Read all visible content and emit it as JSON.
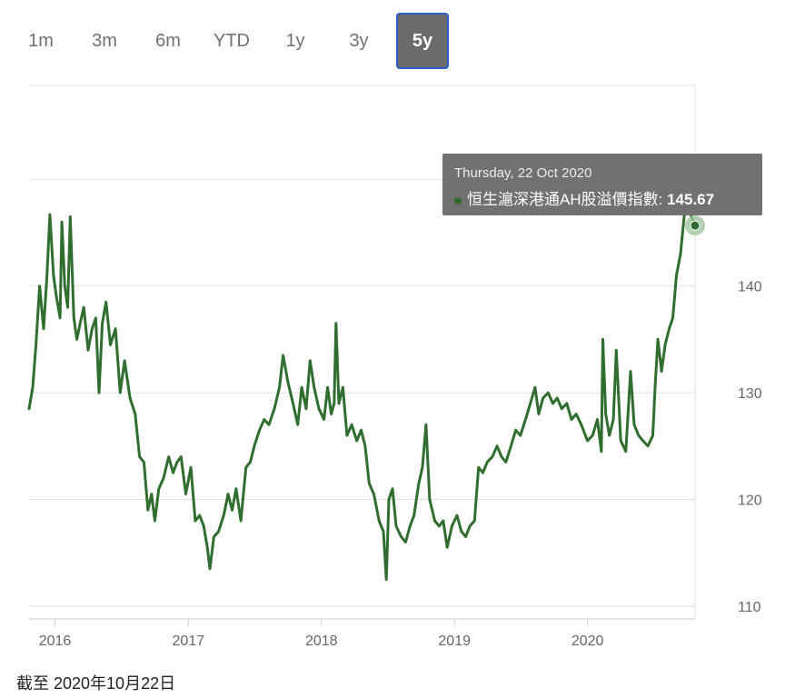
{
  "range_selector": {
    "buttons": [
      {
        "label": "1m",
        "active": false
      },
      {
        "label": "3m",
        "active": false
      },
      {
        "label": "6m",
        "active": false
      },
      {
        "label": "YTD",
        "active": false
      },
      {
        "label": "1y",
        "active": false
      },
      {
        "label": "3y",
        "active": false
      },
      {
        "label": "5y",
        "active": true
      }
    ]
  },
  "tooltip": {
    "date": "Thursday, 22 Oct 2020",
    "series_name": "恒生滬深港通AH股溢價指數",
    "separator": ":",
    "value": "145.67"
  },
  "footer": {
    "as_of": "截至 2020年10月22日"
  },
  "colors": {
    "series": "#2f6e2f",
    "marker_halo": "#9fc79f",
    "grid": "#dfdfdf",
    "active_button_border": "#2b5fc4"
  },
  "chart_data": {
    "type": "line",
    "title": "",
    "xlabel": "",
    "ylabel": "",
    "x_ticks": [
      "2016",
      "2017",
      "2018",
      "2019",
      "2020"
    ],
    "y_ticks": [
      110,
      120,
      130,
      140
    ],
    "xlim": [
      "2015-10-22",
      "2020-10-22"
    ],
    "ylim": [
      108.8,
      158.8
    ],
    "grid": true,
    "highlight": {
      "date": "2020-10-22",
      "value": 145.67
    },
    "series": [
      {
        "name": "恒生滬深港通AH股溢價指數",
        "points": [
          [
            "2015-10-22",
            128.5
          ],
          [
            "2015-11-01",
            130.5
          ],
          [
            "2015-11-10",
            134.5
          ],
          [
            "2015-11-20",
            140.0
          ],
          [
            "2015-12-01",
            136.0
          ],
          [
            "2015-12-10",
            141.0
          ],
          [
            "2015-12-18",
            146.7
          ],
          [
            "2015-12-28",
            141.0
          ],
          [
            "2016-01-05",
            139.0
          ],
          [
            "2016-01-15",
            137.0
          ],
          [
            "2016-01-20",
            146.0
          ],
          [
            "2016-01-28",
            140.0
          ],
          [
            "2016-02-05",
            138.0
          ],
          [
            "2016-02-12",
            146.5
          ],
          [
            "2016-02-22",
            137.0
          ],
          [
            "2016-03-01",
            135.0
          ],
          [
            "2016-03-10",
            136.5
          ],
          [
            "2016-03-20",
            138.0
          ],
          [
            "2016-04-01",
            134.0
          ],
          [
            "2016-04-12",
            136.0
          ],
          [
            "2016-04-22",
            137.0
          ],
          [
            "2016-05-01",
            130.0
          ],
          [
            "2016-05-10",
            136.5
          ],
          [
            "2016-05-20",
            138.5
          ],
          [
            "2016-06-01",
            134.5
          ],
          [
            "2016-06-15",
            136.0
          ],
          [
            "2016-06-28",
            130.0
          ],
          [
            "2016-07-10",
            133.0
          ],
          [
            "2016-07-25",
            129.5
          ],
          [
            "2016-08-08",
            128.0
          ],
          [
            "2016-08-20",
            124.0
          ],
          [
            "2016-09-01",
            123.5
          ],
          [
            "2016-09-12",
            119.0
          ],
          [
            "2016-09-22",
            120.5
          ],
          [
            "2016-10-01",
            118.0
          ],
          [
            "2016-10-12",
            121.0
          ],
          [
            "2016-10-25",
            122.0
          ],
          [
            "2016-11-08",
            124.0
          ],
          [
            "2016-11-20",
            122.5
          ],
          [
            "2016-12-01",
            123.5
          ],
          [
            "2016-12-12",
            124.0
          ],
          [
            "2016-12-25",
            120.5
          ],
          [
            "2017-01-08",
            123.0
          ],
          [
            "2017-01-20",
            118.0
          ],
          [
            "2017-02-01",
            118.5
          ],
          [
            "2017-02-12",
            117.5
          ],
          [
            "2017-02-22",
            115.5
          ],
          [
            "2017-03-01",
            113.5
          ],
          [
            "2017-03-12",
            116.5
          ],
          [
            "2017-03-25",
            117.0
          ],
          [
            "2017-04-08",
            118.5
          ],
          [
            "2017-04-20",
            120.5
          ],
          [
            "2017-05-01",
            119.0
          ],
          [
            "2017-05-12",
            121.0
          ],
          [
            "2017-05-25",
            118.0
          ],
          [
            "2017-06-08",
            123.0
          ],
          [
            "2017-06-20",
            123.5
          ],
          [
            "2017-07-01",
            125.0
          ],
          [
            "2017-07-15",
            126.5
          ],
          [
            "2017-07-28",
            127.5
          ],
          [
            "2017-08-10",
            127.0
          ],
          [
            "2017-08-25",
            128.5
          ],
          [
            "2017-09-08",
            130.5
          ],
          [
            "2017-09-18",
            133.5
          ],
          [
            "2017-10-01",
            131.0
          ],
          [
            "2017-10-15",
            129.0
          ],
          [
            "2017-10-28",
            127.0
          ],
          [
            "2017-11-08",
            130.5
          ],
          [
            "2017-11-20",
            128.5
          ],
          [
            "2017-12-01",
            133.0
          ],
          [
            "2017-12-12",
            130.5
          ],
          [
            "2017-12-25",
            128.5
          ],
          [
            "2018-01-08",
            127.5
          ],
          [
            "2018-01-18",
            130.5
          ],
          [
            "2018-01-28",
            128.0
          ],
          [
            "2018-02-05",
            129.0
          ],
          [
            "2018-02-10",
            136.5
          ],
          [
            "2018-02-18",
            129.0
          ],
          [
            "2018-03-01",
            130.5
          ],
          [
            "2018-03-12",
            126.0
          ],
          [
            "2018-03-25",
            127.0
          ],
          [
            "2018-04-08",
            125.5
          ],
          [
            "2018-04-20",
            126.5
          ],
          [
            "2018-05-01",
            125.0
          ],
          [
            "2018-05-12",
            121.5
          ],
          [
            "2018-05-25",
            120.5
          ],
          [
            "2018-06-08",
            118.0
          ],
          [
            "2018-06-20",
            117.0
          ],
          [
            "2018-06-28",
            112.5
          ],
          [
            "2018-07-05",
            120.0
          ],
          [
            "2018-07-15",
            121.0
          ],
          [
            "2018-07-25",
            117.5
          ],
          [
            "2018-08-08",
            116.5
          ],
          [
            "2018-08-20",
            116.0
          ],
          [
            "2018-09-01",
            117.5
          ],
          [
            "2018-09-12",
            118.5
          ],
          [
            "2018-09-25",
            121.5
          ],
          [
            "2018-10-05",
            123.0
          ],
          [
            "2018-10-15",
            127.0
          ],
          [
            "2018-10-25",
            120.0
          ],
          [
            "2018-11-08",
            118.0
          ],
          [
            "2018-11-20",
            117.5
          ],
          [
            "2018-12-01",
            118.0
          ],
          [
            "2018-12-12",
            115.5
          ],
          [
            "2018-12-25",
            117.5
          ],
          [
            "2019-01-08",
            118.5
          ],
          [
            "2019-01-20",
            117.0
          ],
          [
            "2019-02-01",
            116.5
          ],
          [
            "2019-02-12",
            117.5
          ],
          [
            "2019-02-25",
            118.0
          ],
          [
            "2019-03-08",
            123.0
          ],
          [
            "2019-03-20",
            122.5
          ],
          [
            "2019-04-01",
            123.5
          ],
          [
            "2019-04-15",
            124.0
          ],
          [
            "2019-04-28",
            125.0
          ],
          [
            "2019-05-10",
            124.0
          ],
          [
            "2019-05-22",
            123.5
          ],
          [
            "2019-06-05",
            125.0
          ],
          [
            "2019-06-18",
            126.5
          ],
          [
            "2019-07-01",
            126.0
          ],
          [
            "2019-07-15",
            127.5
          ],
          [
            "2019-07-28",
            129.0
          ],
          [
            "2019-08-10",
            130.5
          ],
          [
            "2019-08-20",
            128.0
          ],
          [
            "2019-09-01",
            129.5
          ],
          [
            "2019-09-15",
            130.0
          ],
          [
            "2019-09-28",
            129.0
          ],
          [
            "2019-10-10",
            129.5
          ],
          [
            "2019-10-22",
            128.5
          ],
          [
            "2019-11-05",
            129.0
          ],
          [
            "2019-11-18",
            127.5
          ],
          [
            "2019-12-01",
            128.0
          ],
          [
            "2019-12-15",
            127.0
          ],
          [
            "2020-01-01",
            125.5
          ],
          [
            "2020-01-15",
            126.0
          ],
          [
            "2020-01-28",
            127.5
          ],
          [
            "2020-02-08",
            124.5
          ],
          [
            "2020-02-12",
            135.0
          ],
          [
            "2020-02-20",
            128.0
          ],
          [
            "2020-03-01",
            126.0
          ],
          [
            "2020-03-12",
            127.5
          ],
          [
            "2020-03-20",
            134.0
          ],
          [
            "2020-04-01",
            125.5
          ],
          [
            "2020-04-15",
            124.5
          ],
          [
            "2020-04-28",
            132.0
          ],
          [
            "2020-05-08",
            127.0
          ],
          [
            "2020-05-20",
            126.0
          ],
          [
            "2020-06-01",
            125.5
          ],
          [
            "2020-06-15",
            125.0
          ],
          [
            "2020-06-28",
            126.0
          ],
          [
            "2020-07-05",
            131.0
          ],
          [
            "2020-07-12",
            135.0
          ],
          [
            "2020-07-22",
            132.0
          ],
          [
            "2020-08-01",
            134.5
          ],
          [
            "2020-08-12",
            136.0
          ],
          [
            "2020-08-22",
            137.0
          ],
          [
            "2020-09-01",
            141.0
          ],
          [
            "2020-09-12",
            143.0
          ],
          [
            "2020-09-22",
            146.5
          ],
          [
            "2020-10-01",
            148.0
          ],
          [
            "2020-10-12",
            146.5
          ],
          [
            "2020-10-22",
            145.67
          ]
        ]
      }
    ]
  }
}
